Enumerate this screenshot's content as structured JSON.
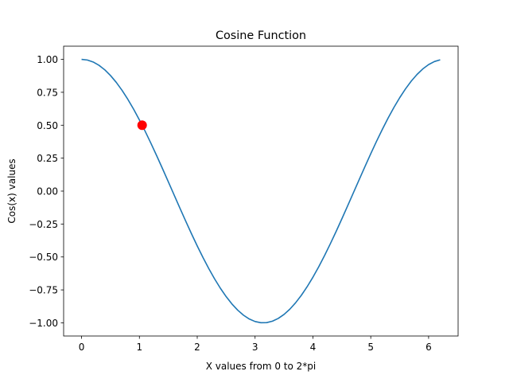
{
  "chart_data": {
    "type": "line",
    "title": "Cosine Function",
    "xlabel": "X values from 0 to 2*pi",
    "ylabel": "Cos(x) values",
    "xlim": [
      -0.31,
      6.51
    ],
    "ylim": [
      -1.1,
      1.1
    ],
    "xticks": [
      0,
      1,
      2,
      3,
      4,
      5,
      6
    ],
    "xtick_labels": [
      "0",
      "1",
      "2",
      "3",
      "4",
      "5",
      "6"
    ],
    "yticks": [
      1.0,
      0.75,
      0.5,
      0.25,
      0.0,
      -0.25,
      -0.5,
      -0.75,
      -1.0
    ],
    "ytick_labels": [
      "1.00",
      "0.75",
      "0.50",
      "0.25",
      "0.00",
      "−0.25",
      "−0.50",
      "−0.75",
      "−1.00"
    ],
    "grid": false,
    "series": [
      {
        "function": "cos",
        "x_start": 0,
        "x_end": 6.2,
        "x_step": 0.1,
        "color": "#1f77b4"
      }
    ],
    "highlight_point": {
      "x": 1.047,
      "y": 0.5,
      "color": "#ff0000"
    }
  }
}
